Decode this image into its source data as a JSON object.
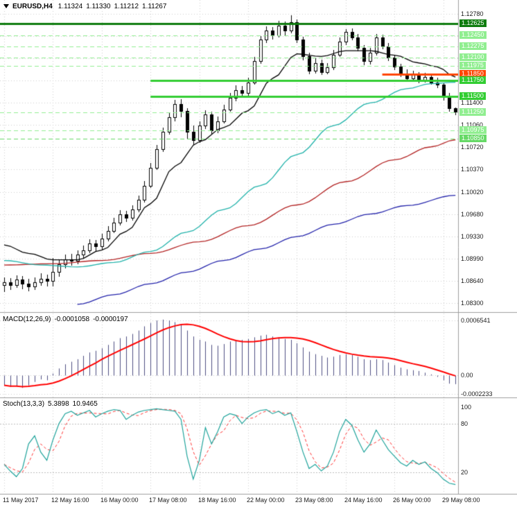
{
  "window": {
    "title_symbol": "EURUSD,H4",
    "ohlc": {
      "open": "1.11324",
      "high": "1.11330",
      "low": "1.11212",
      "close": "1.11267"
    }
  },
  "colors": {
    "background": "#ffffff",
    "grid": "#cfcfcf",
    "separator": "#9e9e9e",
    "axis_text": "#1a1a1a",
    "candle_outline": "#000000",
    "bull_body": "#ffffff",
    "bear_body": "#000000",
    "ma_black": "#000000",
    "ma_cyan": "#20b2aa",
    "ma_red": "#b22222",
    "ma_blue": "#2222aa",
    "level_dark_green": "#0e7c0e",
    "level_bright_green": "#32cd32",
    "level_pale_green": "#90ee90",
    "level_orange": "#ff4500",
    "macd_hist": "#4d4d80",
    "macd_signal": "#ff0000",
    "stoch_main": "#1fa39b",
    "stoch_signal": "#ff3333",
    "indicator_level": "#bbbbbb"
  },
  "chart_data": [
    {
      "type": "candlestick",
      "title": "EURUSD,H4",
      "x_labels": [
        {
          "i": 0,
          "label": "11 May 2017"
        },
        {
          "i": 8,
          "label": "12 May 16:00"
        },
        {
          "i": 16,
          "label": "16 May 00:00"
        },
        {
          "i": 24,
          "label": "17 May 08:00"
        },
        {
          "i": 32,
          "label": "18 May 16:00"
        },
        {
          "i": 40,
          "label": "22 May 00:00"
        },
        {
          "i": 48,
          "label": "23 May 08:00"
        },
        {
          "i": 56,
          "label": "24 May 16:00"
        },
        {
          "i": 64,
          "label": "26 May 00:00"
        },
        {
          "i": 72,
          "label": "29 May 08:00"
        }
      ],
      "y_ticks": [
        {
          "label": "1.12780",
          "p": 1.1278
        },
        {
          "label": "1.11400",
          "p": 1.114
        },
        {
          "label": "1.11060",
          "p": 1.1106
        },
        {
          "label": "1.10720",
          "p": 1.1072
        },
        {
          "label": "1.10370",
          "p": 1.1037
        },
        {
          "label": "1.10020",
          "p": 1.1002
        },
        {
          "label": "1.09680",
          "p": 1.0968
        },
        {
          "label": "1.09330",
          "p": 1.0933
        },
        {
          "label": "1.08990",
          "p": 1.0899
        },
        {
          "label": "1.08640",
          "p": 1.0864
        },
        {
          "label": "1.08300",
          "p": 1.083
        }
      ],
      "grid_prices": [
        1.1278,
        1.12435,
        1.1209,
        1.11745,
        1.114,
        1.1106,
        1.1072,
        1.1037,
        1.1002,
        1.0968,
        1.0933,
        1.0899,
        1.0864,
        1.083
      ],
      "ylim": [
        1.0823,
        1.1285
      ],
      "levels": [
        {
          "label": "1.12625",
          "price": 1.12625,
          "color": "#0e7c0e",
          "style": "solid",
          "width": 3,
          "from": 0
        },
        {
          "label": "1.12450",
          "price": 1.1245,
          "color": "#90ee90",
          "style": "dashed",
          "width": 1,
          "from": 0
        },
        {
          "label": "1.12275",
          "price": 1.12275,
          "color": "#90ee90",
          "style": "dashed",
          "width": 1,
          "from": 0
        },
        {
          "label": "1.12100",
          "price": 1.121,
          "color": "#90ee90",
          "style": "dashed",
          "width": 1,
          "from": 0
        },
        {
          "label": "1.11975",
          "price": 1.11975,
          "color": "#90ee90",
          "style": "dashed",
          "width": 1,
          "from": 0
        },
        {
          "label": "1.11850",
          "price": 1.1185,
          "color": "#ff4500",
          "style": "solid",
          "width": 3,
          "from": 62
        },
        {
          "label": "1.11750",
          "price": 1.1175,
          "color": "#32cd32",
          "style": "solid",
          "width": 3,
          "from": 24
        },
        {
          "label": "1.11500",
          "price": 1.115,
          "color": "#32cd32",
          "style": "solid",
          "width": 3,
          "from": 24
        },
        {
          "label": "1.11250",
          "price": 1.1125,
          "color": "#90ee90",
          "style": "dashed",
          "width": 1,
          "from": 0
        },
        {
          "label": "1.10975",
          "price": 1.10975,
          "color": "#90ee90",
          "style": "dashed",
          "width": 1,
          "from": 0
        },
        {
          "label": "1.10850",
          "price": 1.1085,
          "color": "#66d966",
          "style": "dashed",
          "width": 1,
          "from": 0
        }
      ],
      "ohlc": [
        [
          1.0858,
          1.087,
          1.0847,
          1.0862
        ],
        [
          1.0862,
          1.0869,
          1.085,
          1.0858
        ],
        [
          1.0858,
          1.0873,
          1.0854,
          1.0866
        ],
        [
          1.0866,
          1.0872,
          1.0852,
          1.086
        ],
        [
          1.086,
          1.0868,
          1.0848,
          1.0856
        ],
        [
          1.0856,
          1.087,
          1.085,
          1.0862
        ],
        [
          1.0862,
          1.0876,
          1.0857,
          1.0868
        ],
        [
          1.0868,
          1.0874,
          1.0856,
          1.0864
        ],
        [
          1.0864,
          1.09,
          1.0856,
          1.0878
        ],
        [
          1.0878,
          1.0897,
          1.0871,
          1.089
        ],
        [
          1.089,
          1.0905,
          1.0884,
          1.0898
        ],
        [
          1.0898,
          1.0906,
          1.0888,
          1.0895
        ],
        [
          1.0895,
          1.0912,
          1.089,
          1.0905
        ],
        [
          1.0905,
          1.0919,
          1.09,
          1.0912
        ],
        [
          1.0912,
          1.0929,
          1.0907,
          1.0922
        ],
        [
          1.0922,
          1.0928,
          1.0911,
          1.0918
        ],
        [
          1.0918,
          1.0937,
          1.0913,
          1.093
        ],
        [
          1.093,
          1.0949,
          1.0926,
          1.0942
        ],
        [
          1.0942,
          1.0962,
          1.0938,
          1.0955
        ],
        [
          1.0955,
          1.0974,
          1.095,
          1.0968
        ],
        [
          1.0968,
          1.0973,
          1.0956,
          1.0962
        ],
        [
          1.0962,
          1.0982,
          1.0958,
          1.0975
        ],
        [
          1.0975,
          1.0997,
          1.0971,
          1.099
        ],
        [
          1.099,
          1.1019,
          1.0986,
          1.1012
        ],
        [
          1.1012,
          1.1047,
          1.1008,
          1.104
        ],
        [
          1.104,
          1.1075,
          1.1036,
          1.1068
        ],
        [
          1.1068,
          1.1102,
          1.1064,
          1.1095
        ],
        [
          1.1095,
          1.1125,
          1.1091,
          1.1118
        ],
        [
          1.1118,
          1.1145,
          1.1112,
          1.1138
        ],
        [
          1.1138,
          1.1146,
          1.1118,
          1.1128
        ],
        [
          1.1128,
          1.1132,
          1.1085,
          1.1095
        ],
        [
          1.1095,
          1.1105,
          1.1075,
          1.1082
        ],
        [
          1.1082,
          1.1112,
          1.1078,
          1.1105
        ],
        [
          1.1105,
          1.1129,
          1.11,
          1.1122
        ],
        [
          1.1122,
          1.1126,
          1.1092,
          1.1098
        ],
        [
          1.1098,
          1.1119,
          1.1093,
          1.1112
        ],
        [
          1.1112,
          1.1137,
          1.1108,
          1.113
        ],
        [
          1.113,
          1.1155,
          1.1126,
          1.1148
        ],
        [
          1.1148,
          1.1167,
          1.1143,
          1.116
        ],
        [
          1.116,
          1.1166,
          1.1148,
          1.1155
        ],
        [
          1.1155,
          1.1179,
          1.115,
          1.1172
        ],
        [
          1.1172,
          1.1211,
          1.1168,
          1.1205
        ],
        [
          1.1205,
          1.1244,
          1.1201,
          1.1238
        ],
        [
          1.1238,
          1.1259,
          1.1233,
          1.1252
        ],
        [
          1.1252,
          1.1258,
          1.1238,
          1.1245
        ],
        [
          1.1245,
          1.1267,
          1.1241,
          1.126
        ],
        [
          1.126,
          1.1266,
          1.1245,
          1.1252
        ],
        [
          1.1252,
          1.1276,
          1.1248,
          1.1265
        ],
        [
          1.1265,
          1.1269,
          1.1233,
          1.1238
        ],
        [
          1.1238,
          1.1243,
          1.1206,
          1.1212
        ],
        [
          1.1212,
          1.1218,
          1.1184,
          1.119
        ],
        [
          1.119,
          1.1209,
          1.1186,
          1.1202
        ],
        [
          1.1202,
          1.1207,
          1.1183,
          1.1188
        ],
        [
          1.1188,
          1.1202,
          1.1184,
          1.1195
        ],
        [
          1.1195,
          1.1222,
          1.1191,
          1.1215
        ],
        [
          1.1215,
          1.1242,
          1.1211,
          1.1235
        ],
        [
          1.1235,
          1.1254,
          1.123,
          1.125
        ],
        [
          1.125,
          1.1255,
          1.1237,
          1.1242
        ],
        [
          1.1242,
          1.1247,
          1.122,
          1.1225
        ],
        [
          1.1225,
          1.123,
          1.1199,
          1.1205
        ],
        [
          1.1205,
          1.1225,
          1.12,
          1.1218
        ],
        [
          1.1218,
          1.1247,
          1.1214,
          1.1242
        ],
        [
          1.1242,
          1.1246,
          1.1223,
          1.1228
        ],
        [
          1.1228,
          1.1233,
          1.1205,
          1.121
        ],
        [
          1.121,
          1.1215,
          1.1191,
          1.1196
        ],
        [
          1.1196,
          1.1201,
          1.118,
          1.1185
        ],
        [
          1.1185,
          1.1192,
          1.1174,
          1.1178
        ],
        [
          1.1178,
          1.119,
          1.1175,
          1.1184
        ],
        [
          1.1184,
          1.1188,
          1.1171,
          1.1176
        ],
        [
          1.1176,
          1.1187,
          1.1172,
          1.118
        ],
        [
          1.118,
          1.1185,
          1.1168,
          1.1172
        ],
        [
          1.1172,
          1.1179,
          1.1163,
          1.1168
        ],
        [
          1.1168,
          1.1172,
          1.1144,
          1.115
        ],
        [
          1.115,
          1.1156,
          1.1126,
          1.1132
        ],
        [
          1.11324,
          1.1133,
          1.11212,
          1.11267
        ]
      ],
      "moving_averages": [
        {
          "name": "ma-blue-slow",
          "color": "#2222aa",
          "points": [
            [
              12,
              1.0828
            ],
            [
              18,
              1.0843
            ],
            [
              24,
              1.086
            ],
            [
              30,
              1.0878
            ],
            [
              36,
              1.0896
            ],
            [
              42,
              1.0914
            ],
            [
              48,
              1.0933
            ],
            [
              54,
              1.0952
            ],
            [
              60,
              1.0968
            ],
            [
              66,
              1.0981
            ],
            [
              74,
              1.0997
            ]
          ]
        },
        {
          "name": "ma-red",
          "color": "#b22222",
          "points": [
            [
              0,
              1.0889
            ],
            [
              8,
              1.0891
            ],
            [
              16,
              1.0896
            ],
            [
              24,
              1.0907
            ],
            [
              32,
              1.0925
            ],
            [
              40,
              1.095
            ],
            [
              48,
              1.0982
            ],
            [
              56,
              1.1018
            ],
            [
              64,
              1.1052
            ],
            [
              70,
              1.1072
            ],
            [
              74,
              1.1083
            ]
          ]
        },
        {
          "name": "ma-cyan",
          "color": "#20b2aa",
          "points": [
            [
              0,
              1.0896
            ],
            [
              6,
              1.0889
            ],
            [
              12,
              1.0886
            ],
            [
              18,
              1.0893
            ],
            [
              24,
              1.091
            ],
            [
              30,
              1.094
            ],
            [
              36,
              1.0975
            ],
            [
              42,
              1.1012
            ],
            [
              48,
              1.106
            ],
            [
              54,
              1.1105
            ],
            [
              60,
              1.114
            ],
            [
              66,
              1.1162
            ],
            [
              70,
              1.117
            ],
            [
              74,
              1.1172
            ]
          ]
        },
        {
          "name": "ma-black-fast",
          "color": "#000000",
          "points": [
            [
              0,
              1.092
            ],
            [
              4,
              1.0907
            ],
            [
              8,
              1.0897
            ],
            [
              12,
              1.0897
            ],
            [
              16,
              1.0912
            ],
            [
              20,
              1.0941
            ],
            [
              24,
              1.0984
            ],
            [
              28,
              1.1042
            ],
            [
              32,
              1.108
            ],
            [
              36,
              1.1102
            ],
            [
              40,
              1.1128
            ],
            [
              44,
              1.1178
            ],
            [
              48,
              1.1216
            ],
            [
              52,
              1.1212
            ],
            [
              56,
              1.1221
            ],
            [
              60,
              1.1221
            ],
            [
              64,
              1.1214
            ],
            [
              68,
              1.1202
            ],
            [
              71,
              1.1196
            ],
            [
              74,
              1.118
            ]
          ]
        }
      ]
    },
    {
      "type": "bar",
      "title": "MACD(12,26,9)",
      "value_label": "-0.0001058",
      "signal_label": "-0.0000197",
      "unit": 0.0001,
      "signal_period": 9,
      "axis_labels": [
        {
          "label": "0.0006541",
          "value": 0.0006541
        },
        {
          "label": "0.00",
          "value": 0
        },
        {
          "label": "-0.0002233",
          "value": -0.0002233
        }
      ],
      "ylim": [
        -0.00028,
        0.00073
      ],
      "values": [
        -1.2,
        -1.4,
        -1.3,
        -1.5,
        -1.2,
        -0.8,
        -0.5,
        -0.6,
        0.2,
        0.8,
        1.3,
        1.6,
        1.9,
        2.3,
        2.7,
        2.9,
        3.2,
        3.6,
        4.0,
        4.4,
        4.6,
        4.9,
        5.3,
        5.8,
        6.2,
        6.5,
        6.6,
        6.5,
        6.3,
        6.0,
        5.3,
        4.6,
        4.2,
        4.0,
        3.6,
        3.5,
        3.7,
        4.0,
        4.2,
        4.2,
        4.3,
        4.5,
        4.7,
        4.8,
        4.6,
        4.5,
        4.3,
        4.2,
        3.8,
        3.3,
        2.8,
        2.5,
        2.3,
        2.1,
        2.2,
        2.4,
        2.5,
        2.4,
        2.2,
        1.9,
        1.8,
        1.9,
        1.8,
        1.5,
        1.2,
        0.9,
        0.7,
        0.6,
        0.5,
        0.3,
        0.1,
        -0.2,
        -0.6,
        -1.0,
        -1.06
      ]
    },
    {
      "type": "line",
      "title": "Stoch(13,3,3)",
      "value_label": "5.3898",
      "signal_label": "10.9465",
      "signal_period": 3,
      "axis_labels": [
        {
          "label": "100",
          "value": 100
        },
        {
          "label": "80",
          "value": 80
        },
        {
          "label": "20",
          "value": 20
        }
      ],
      "levels": [
        80,
        20
      ],
      "ylim": [
        0,
        100
      ],
      "values": [
        30,
        22,
        15,
        25,
        55,
        65,
        45,
        35,
        60,
        80,
        92,
        95,
        90,
        93,
        96,
        88,
        92,
        95,
        97,
        96,
        85,
        90,
        94,
        96,
        97,
        98,
        97,
        96,
        95,
        85,
        40,
        12,
        35,
        75,
        55,
        70,
        88,
        92,
        90,
        80,
        88,
        93,
        96,
        97,
        92,
        95,
        90,
        93,
        70,
        45,
        25,
        30,
        22,
        28,
        45,
        70,
        85,
        78,
        60,
        45,
        55,
        72,
        60,
        48,
        40,
        32,
        28,
        35,
        30,
        33,
        25,
        20,
        12,
        7,
        5.39
      ]
    }
  ]
}
